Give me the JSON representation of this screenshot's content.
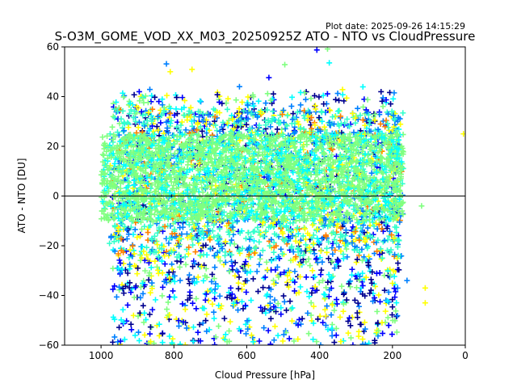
{
  "plot_date": "Plot date: 2025-09-26 14:15:29",
  "chart_data": {
    "type": "scatter",
    "title": "S-O3M_GOME_VOD_XX_M03_20250925Z ATO - NTO vs CloudPressure",
    "xlabel": "Cloud Pressure [hPa]",
    "ylabel": "ATO - NTO [DU]",
    "xlim": [
      1100,
      0
    ],
    "ylim": [
      -60,
      60
    ],
    "xticks": [
      1000,
      800,
      600,
      400,
      200,
      0
    ],
    "yticks": [
      -60,
      -40,
      -20,
      0,
      20,
      40,
      60
    ],
    "reference_line_y": 0,
    "marker": "+",
    "colormap": [
      "#00008f",
      "#0000ff",
      "#0080ff",
      "#00ffff",
      "#80ff80",
      "#ffff00",
      "#ff8000"
    ],
    "density_regions": [
      {
        "x": [
          170,
          1000
        ],
        "y": [
          -10,
          25
        ],
        "level": "highest",
        "color": "#80ff80"
      },
      {
        "x": [
          170,
          980
        ],
        "y": [
          -25,
          35
        ],
        "level": "high",
        "color": "#33ffcc"
      },
      {
        "x": [
          180,
          970
        ],
        "y": [
          -60,
          42
        ],
        "level": "sparse",
        "color": "#00ccff"
      }
    ],
    "outliers": [
      {
        "x": 810,
        "y": 50
      },
      {
        "x": 620,
        "y": 44
      },
      {
        "x": 110,
        "y": -37
      },
      {
        "x": 110,
        "y": -43
      },
      {
        "x": 120,
        "y": -4
      },
      {
        "x": 160,
        "y": -34
      },
      {
        "x": 5,
        "y": 25
      }
    ]
  }
}
